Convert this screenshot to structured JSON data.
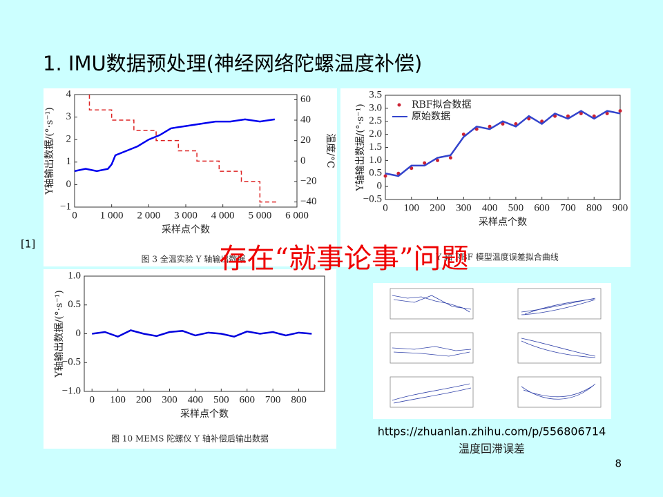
{
  "title": "1. IMU数据预处理(神经网络陀螺温度补偿)",
  "note": "[1]",
  "overlay_text": "存在“就事论事”问题",
  "url": "https://zhuanlan.zhihu.com/p/556806714",
  "hysteresis_caption": "温度回滞误差",
  "page_number": "8",
  "figures": [
    {
      "type": "line",
      "x_label": "采样点个数",
      "y_label": "Y轴输出数据/(°·s⁻¹)",
      "y2_label": "温度/°C",
      "caption": "图 3   全温实验 Y 轴输出数据",
      "xlim": [
        0,
        6000
      ],
      "xticks": [
        0,
        {
          "value": 1000,
          "label": "1 000"
        },
        {
          "value": 2000,
          "label": "2 000"
        },
        {
          "value": 3000,
          "label": "3 000"
        },
        {
          "value": 4000,
          "label": "4 000"
        },
        {
          "value": 5000,
          "label": "5 000"
        },
        {
          "value": 6000,
          "label": "6 000"
        }
      ],
      "ylim": [
        -1,
        4
      ],
      "yticks": [
        {
          "value": -1,
          "label": "−1"
        },
        0,
        1,
        2,
        3,
        4
      ],
      "y2lim": [
        -45,
        65
      ],
      "y2ticks": [
        {
          "value": -40,
          "label": "−40"
        },
        {
          "value": -20,
          "label": "−20"
        },
        0,
        20,
        40,
        60
      ],
      "series": [
        {
          "color": "#0000ee",
          "style": "solid",
          "x": [
            0,
            300,
            600,
            900,
            1000,
            1100,
            1400,
            1700,
            2000,
            2300,
            2600,
            3000,
            3400,
            3800,
            4200,
            4600,
            5000,
            5400
          ],
          "values": [
            0.6,
            0.7,
            0.6,
            0.7,
            0.9,
            1.3,
            1.5,
            1.7,
            2.0,
            2.2,
            2.5,
            2.6,
            2.7,
            2.8,
            2.8,
            2.9,
            2.8,
            2.9
          ]
        },
        {
          "color": "#dd2222",
          "style": "dashed",
          "axis": "y2",
          "x": [
            400,
            400,
            1000,
            1000,
            1600,
            1600,
            2200,
            2200,
            2800,
            2800,
            3300,
            3300,
            3900,
            3900,
            4500,
            4500,
            5000,
            5000,
            5500
          ],
          "values": [
            65,
            50,
            50,
            40,
            40,
            30,
            30,
            20,
            20,
            10,
            10,
            0,
            0,
            -10,
            -10,
            -20,
            -20,
            -40,
            -40
          ]
        }
      ]
    },
    {
      "type": "line",
      "x_label": "采样点个数",
      "y_label": "Y轴输出数据/(°·s⁻¹)",
      "caption": "Y 轴 RBF 模型温度误差拟合曲线",
      "xlim": [
        0,
        900
      ],
      "xticks": [
        0,
        100,
        200,
        300,
        400,
        500,
        600,
        700,
        800,
        900
      ],
      "ylim": [
        -0.5,
        3.5
      ],
      "yticks": [
        {
          "value": -0.5,
          "label": "−0.5"
        },
        0,
        0.5,
        {
          "value": 1,
          "label": "1.0"
        },
        1.5,
        {
          "value": 2,
          "label": "2.0"
        },
        2.5,
        {
          "value": 3,
          "label": "3.0"
        },
        3.5
      ],
      "legend": "upper left",
      "series": [
        {
          "name": "RBF拟合数据",
          "color": "#cc2233",
          "style": "markers",
          "x": [
            0,
            50,
            100,
            150,
            200,
            250,
            300,
            350,
            400,
            450,
            500,
            550,
            600,
            650,
            700,
            750,
            800,
            850,
            900
          ],
          "values": [
            0.4,
            0.5,
            0.7,
            0.9,
            1.0,
            1.1,
            2.0,
            2.2,
            2.3,
            2.4,
            2.4,
            2.6,
            2.5,
            2.7,
            2.7,
            2.8,
            2.7,
            2.8,
            2.9
          ]
        },
        {
          "name": "原始数据",
          "color": "#3344cc",
          "style": "solid",
          "x": [
            0,
            50,
            100,
            150,
            200,
            250,
            300,
            350,
            400,
            450,
            500,
            550,
            600,
            650,
            700,
            750,
            800,
            850,
            900
          ],
          "values": [
            0.5,
            0.4,
            0.8,
            0.8,
            1.1,
            1.2,
            1.9,
            2.3,
            2.2,
            2.5,
            2.3,
            2.7,
            2.4,
            2.8,
            2.6,
            2.9,
            2.6,
            2.9,
            2.8
          ]
        }
      ]
    },
    {
      "type": "line",
      "x_label": "采样点个数",
      "y_label": "Y轴输出数据/(°·s⁻¹)",
      "caption": "图 10   MEMS 陀螺仪 Y 轴补偿后输出数据",
      "xlim": [
        -30,
        900
      ],
      "xticks": [
        0,
        100,
        200,
        300,
        400,
        500,
        600,
        700,
        800
      ],
      "ylim": [
        -1,
        1
      ],
      "yticks": [
        {
          "value": -1,
          "label": "−1.0"
        },
        {
          "value": -0.5,
          "label": "−0.5"
        },
        0,
        0.5,
        {
          "value": 1,
          "label": "1.0"
        }
      ],
      "series": [
        {
          "color": "#0000dd",
          "style": "solid",
          "x": [
            0,
            50,
            100,
            150,
            200,
            250,
            300,
            350,
            400,
            450,
            500,
            550,
            600,
            650,
            700,
            750,
            800,
            850
          ],
          "values": [
            0,
            0.03,
            -0.05,
            0.06,
            0,
            -0.04,
            0.03,
            0.05,
            -0.03,
            0.02,
            0,
            -0.05,
            0.04,
            0,
            0.03,
            -0.03,
            0.02,
            0
          ]
        }
      ]
    }
  ]
}
